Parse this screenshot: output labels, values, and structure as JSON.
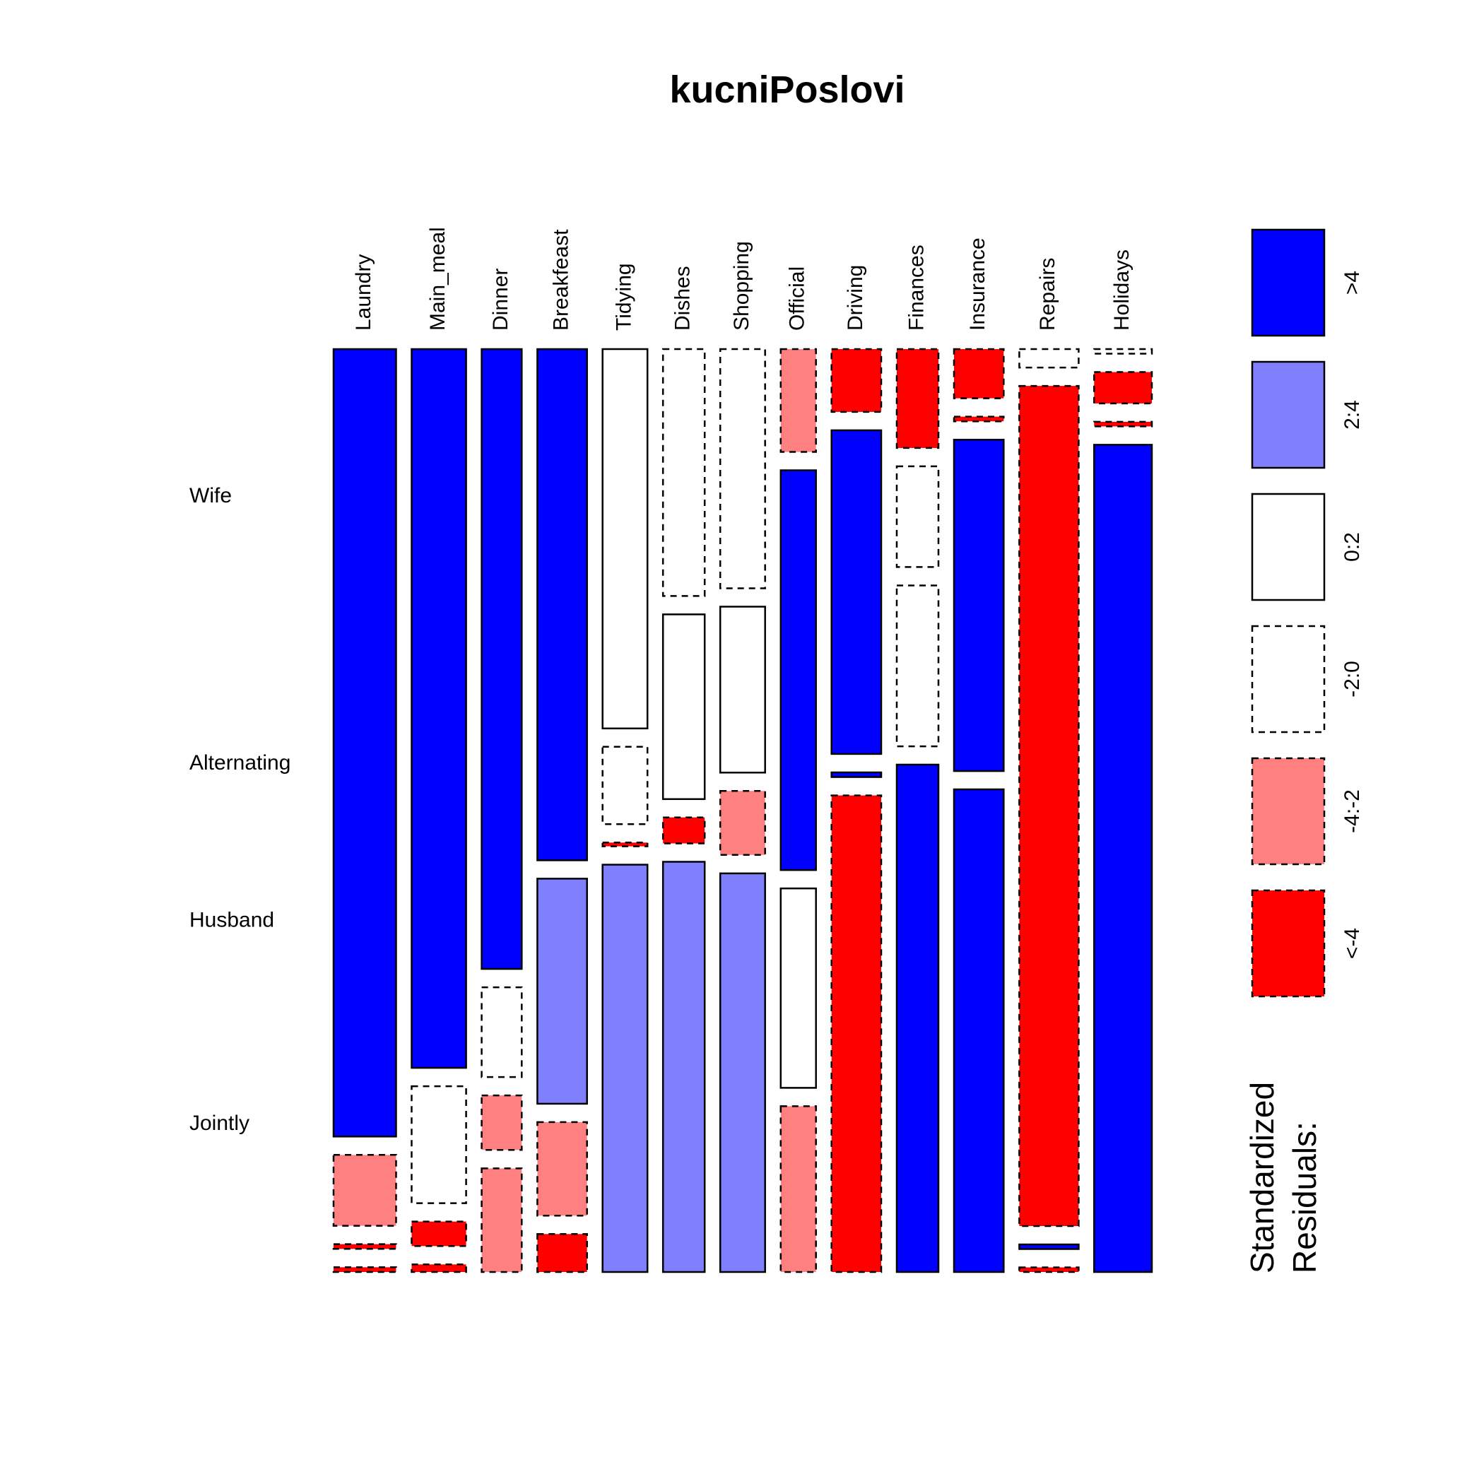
{
  "chart_data": {
    "type": "mosaic",
    "title": "kucniPoslovi",
    "columns": [
      "Laundry",
      "Main_meal",
      "Dinner",
      "Breakfeast",
      "Tidying",
      "Dishes",
      "Shopping",
      "Official",
      "Driving",
      "Finances",
      "Insurance",
      "Repairs",
      "Holidays"
    ],
    "rows": [
      "Wife",
      "Alternating",
      "Husband",
      "Jointly"
    ],
    "row_label_order_top_to_bottom": [
      "Wife",
      "Alternating",
      "Husband",
      "Jointly"
    ],
    "column_width_share": [
      0.0897,
      0.0782,
      0.0575,
      0.0713,
      0.0644,
      0.0598,
      0.0644,
      0.0506,
      0.0713,
      0.0598,
      0.0713,
      0.0851,
      0.0828
    ],
    "cell_share": [
      [
        0.833,
        0.075,
        0.005,
        0.005
      ],
      [
        0.762,
        0.124,
        0.026,
        0.008
      ],
      [
        0.67,
        0.097,
        0.059,
        0.112
      ],
      [
        0.552,
        0.243,
        0.101,
        0.041
      ],
      [
        0.407,
        0.083,
        0.004,
        0.437
      ],
      [
        0.266,
        0.199,
        0.028,
        0.442
      ],
      [
        0.258,
        0.179,
        0.069,
        0.43
      ],
      [
        0.116,
        0.451,
        0.225,
        0.187
      ],
      [
        0.067,
        0.345,
        0.005,
        0.508
      ],
      [
        0.107,
        0.109,
        0.174,
        0.549
      ],
      [
        0.053,
        0.005,
        0.357,
        0.52
      ],
      [
        0.02,
        0.911,
        0.005,
        0.005
      ],
      [
        0.005,
        0.034,
        0.005,
        0.897
      ]
    ],
    "cell_class": [
      [
        ">4",
        "-4:-2",
        "<-4",
        "<-4"
      ],
      [
        ">4",
        "-2:0",
        "<-4",
        "<-4"
      ],
      [
        ">4",
        "-2:0",
        "-4:-2",
        "-4:-2"
      ],
      [
        ">4",
        "2:4",
        "-4:-2",
        "<-4"
      ],
      [
        "0:2",
        "-2:0",
        "<-4",
        "2:4"
      ],
      [
        "-2:0",
        "0:2",
        "<-4",
        "2:4"
      ],
      [
        "-2:0",
        "0:2",
        "-4:-2",
        "2:4"
      ],
      [
        "-4:-2",
        ">4",
        "0:2",
        "-4:-2"
      ],
      [
        "<-4",
        ">4",
        ">4",
        "<-4"
      ],
      [
        "<-4",
        "-2:0",
        "-2:0",
        ">4"
      ],
      [
        "<-4",
        "<-4",
        ">4",
        ">4"
      ],
      [
        "-2:0",
        "<-4",
        ">4",
        "<-4"
      ],
      [
        "-2:0",
        "<-4",
        "<-4",
        ">4"
      ]
    ],
    "legend": {
      "title_lines": [
        "Standardized",
        "Residuals:"
      ],
      "entries": [
        {
          "label": ">4",
          "fill": "#0000ff",
          "dashed": false
        },
        {
          "label": "2:4",
          "fill": "#8080ff",
          "dashed": false
        },
        {
          "label": "0:2",
          "fill": "#ffffff",
          "dashed": false
        },
        {
          "label": "-2:0",
          "fill": "#ffffff",
          "dashed": true
        },
        {
          "label": "-4:-2",
          "fill": "#ff8080",
          "dashed": true
        },
        {
          "label": "<-4",
          "fill": "#ff0000",
          "dashed": true
        }
      ]
    }
  }
}
